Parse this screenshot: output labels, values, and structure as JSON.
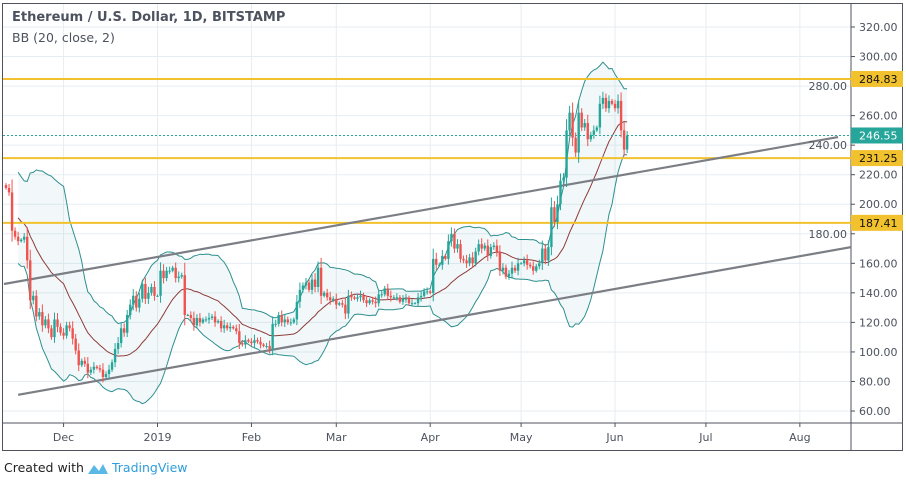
{
  "header": {
    "title": "Ethereum / U.S. Dollar, 1D, BITSTAMP",
    "indicator": "BB (20, close, 2)"
  },
  "footer": {
    "created_with": "Created with",
    "brand": "TradingView"
  },
  "colors": {
    "up": "#26a69a",
    "down": "#ef5350",
    "level": "#f2c12e",
    "band": "#2e8f8f",
    "basis": "#8e3b3b",
    "trend": "#7b7e84",
    "last": "#26a69a"
  },
  "chart_data": {
    "type": "candlestick",
    "title": "Ethereum / U.S. Dollar, 1D, BITSTAMP",
    "start_date": "2018-11-12",
    "ylim": [
      50,
      335
    ],
    "y_ticks": [
      "320.00",
      "300.00",
      "280.00",
      "260.00",
      "240.00",
      "220.00",
      "200.00",
      "180.00",
      "160.00",
      "140.00",
      "120.00",
      "100.00",
      "80.00",
      "60.00"
    ],
    "x_ticks": [
      {
        "label": "Dec",
        "day": 19
      },
      {
        "label": "2019",
        "day": 50
      },
      {
        "label": "Feb",
        "day": 81
      },
      {
        "label": "Mar",
        "day": 109
      },
      {
        "label": "Apr",
        "day": 140
      },
      {
        "label": "May",
        "day": 170
      },
      {
        "label": "Jun",
        "day": 201
      },
      {
        "label": "Jul",
        "day": 231
      },
      {
        "label": "Aug",
        "day": 262
      }
    ],
    "closes": [
      211,
      208,
      182,
      178,
      175,
      176,
      178,
      162,
      135,
      138,
      124,
      127,
      118,
      122,
      116,
      110,
      122,
      117,
      113,
      111,
      118,
      116,
      109,
      101,
      91,
      94,
      92,
      86,
      88,
      90,
      89,
      88,
      83,
      85,
      88,
      93,
      102,
      106,
      116,
      113,
      125,
      132,
      138,
      130,
      136,
      146,
      136,
      140,
      144,
      138,
      138,
      155,
      150,
      155,
      155,
      157,
      150,
      151,
      152,
      125,
      125,
      123,
      118,
      123,
      120,
      122,
      122,
      123,
      124,
      120,
      121,
      116,
      118,
      116,
      117,
      116,
      114,
      106,
      105,
      108,
      107,
      106,
      108,
      107,
      105,
      104,
      104,
      102,
      119,
      119,
      125,
      120,
      122,
      120,
      120,
      122,
      134,
      142,
      145,
      147,
      142,
      149,
      144,
      157,
      138,
      140,
      137,
      135,
      136,
      132,
      133,
      132,
      126,
      138,
      137,
      136,
      137,
      138,
      135,
      133,
      135,
      134,
      133,
      139,
      139,
      143,
      138,
      137,
      137,
      137,
      134,
      136,
      136,
      133,
      133,
      133,
      137,
      138,
      141,
      141,
      140,
      163,
      159,
      159,
      165,
      163,
      175,
      180,
      170,
      173,
      163,
      162,
      160,
      164,
      160,
      168,
      173,
      170,
      172,
      165,
      171,
      172,
      168,
      155,
      157,
      151,
      153,
      157,
      155,
      160,
      160,
      162,
      159,
      158,
      155,
      158,
      160,
      170,
      162,
      171,
      198,
      188,
      200,
      216,
      218,
      250,
      262,
      245,
      235,
      262,
      252,
      255,
      244,
      247,
      250,
      252,
      268,
      272,
      265,
      270,
      268,
      265,
      270,
      250,
      237,
      246.55
    ],
    "bollinger": {
      "length": 20,
      "source": "close",
      "mult": 2
    },
    "levels": [
      {
        "price": 284.83,
        "label": "284.83"
      },
      {
        "price": 231.25,
        "label": "231.25"
      },
      {
        "price": 187.41,
        "label": "187.41"
      }
    ],
    "last_price": {
      "price": 246.55,
      "label": "246.55"
    },
    "trendlines": [
      {
        "name": "upper",
        "from": {
          "day": -0.7,
          "price": 146
        },
        "to": {
          "day": 274.6,
          "price": 245.5
        }
      },
      {
        "name": "lower",
        "from": {
          "day": 4,
          "price": 71
        },
        "to": {
          "day": 279,
          "price": 171
        }
      }
    ]
  }
}
